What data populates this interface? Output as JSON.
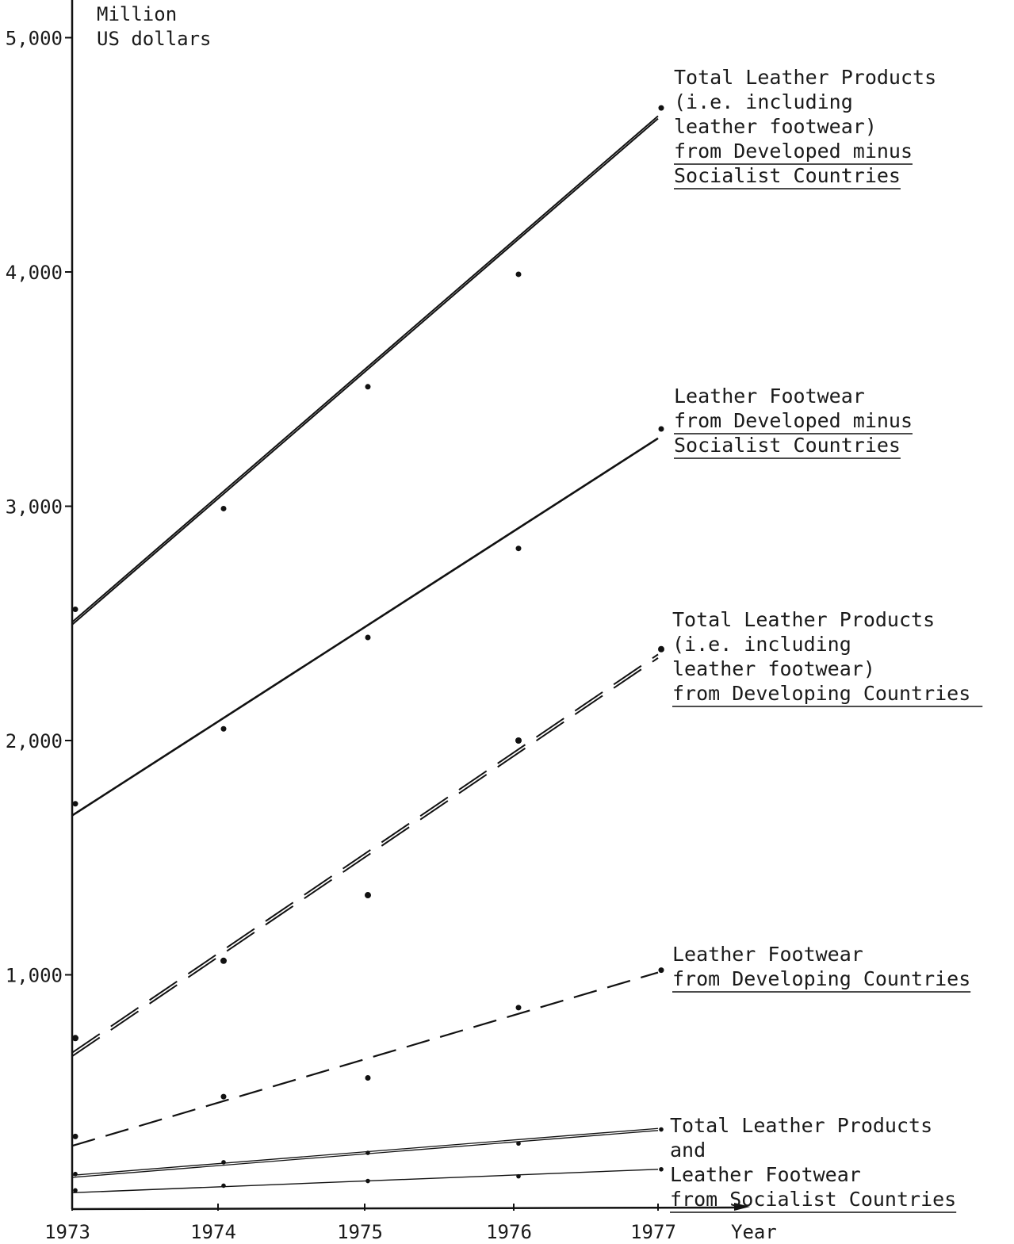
{
  "chart_data": {
    "type": "line",
    "ylabel": [
      "Million",
      "US dollars"
    ],
    "xlabel": "Year",
    "x": [
      1973,
      1974,
      1975,
      1976,
      1977
    ],
    "x_tick_labels": [
      "1973",
      "1974",
      "1975",
      "1976",
      "1977"
    ],
    "ylim": [
      0,
      5150
    ],
    "xlim": [
      1973,
      1977.6
    ],
    "y_ticks": [
      1000,
      2000,
      3000,
      4000,
      5000
    ],
    "y_tick_labels": [
      "1,000",
      "2,000",
      "3,000",
      "4,000",
      "5,000"
    ],
    "grid": false,
    "series": [
      {
        "style": "double-solid",
        "points": [
          2560,
          2990,
          3510,
          3990,
          4700
        ],
        "trend": [
          2500,
          4660
        ],
        "label_lines": [
          {
            "text": "Total Leather Products",
            "underline": false
          },
          {
            "text": "(i.e. including",
            "underline": false
          },
          {
            "text": " leather footwear)",
            "underline": false
          },
          {
            "text": "from Developed minus",
            "underline": true
          },
          {
            "text": "Socialist Countries",
            "underline": true
          }
        ]
      },
      {
        "style": "solid",
        "points": [
          1730,
          2050,
          2440,
          2820,
          3330
        ],
        "trend": [
          1680,
          3290
        ],
        "label_lines": [
          {
            "text": "Leather Footwear",
            "underline": false
          },
          {
            "text": "from Developed minus",
            "underline": true
          },
          {
            "text": "Socialist Countries",
            "underline": true
          }
        ]
      },
      {
        "style": "double-dashed",
        "points": [
          730,
          1060,
          1340,
          2000,
          2390
        ],
        "trend": [
          660,
          2360
        ],
        "label_lines": [
          {
            "text": "Total Leather Products",
            "underline": false
          },
          {
            "text": "(i.e. including",
            "underline": false
          },
          {
            "text": " leather footwear)",
            "underline": false
          },
          {
            "text": "from  Developing Countries",
            "underline": true
          }
        ]
      },
      {
        "style": "dashed",
        "points": [
          310,
          480,
          560,
          860,
          1020
        ],
        "trend": [
          270,
          1010
        ],
        "label_lines": [
          {
            "text": "Leather Footwear",
            "underline": false
          },
          {
            "text": "from Developing Countries",
            "underline": true
          }
        ]
      },
      {
        "style": "thin-double",
        "points": [
          150,
          200,
          240,
          280,
          340
        ],
        "trend": [
          140,
          340
        ],
        "label_lines": []
      },
      {
        "style": "thin",
        "points": [
          80,
          100,
          120,
          140,
          170
        ],
        "trend": [
          70,
          170
        ],
        "label_lines": [
          {
            "text": "Total Leather Products",
            "underline": false
          },
          {
            "text": "and",
            "underline": false
          },
          {
            "text": "Leather Footwear",
            "underline": false
          },
          {
            "text": "from Socialist Countries",
            "underline": true
          }
        ]
      }
    ]
  }
}
